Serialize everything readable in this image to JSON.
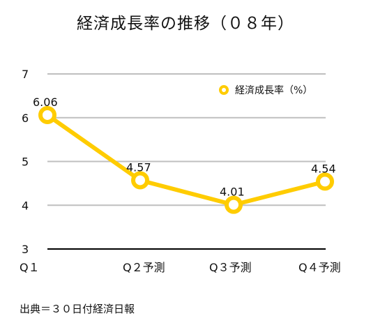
{
  "chart_data": {
    "type": "line",
    "title": "経済成長率の推移（０８年）",
    "categories": [
      "Q１",
      "Q２予測",
      "Q３予測",
      "Q４予測"
    ],
    "series": [
      {
        "name": "経済成長率（%）",
        "values": [
          6.06,
          4.57,
          4.01,
          4.54
        ]
      }
    ],
    "data_labels": [
      "6.06",
      "4.57",
      "4.01",
      "4.54"
    ],
    "y_ticks": [
      "3",
      "4",
      "5",
      "6",
      "7"
    ],
    "ylim": [
      3,
      7
    ],
    "grid": true,
    "legend_position": "top-right",
    "line_color": "#ffcc00",
    "grid_color": "#bfbfbf",
    "axis_color": "#000000"
  },
  "footer": {
    "source": "出典＝３０日付経済日報"
  }
}
